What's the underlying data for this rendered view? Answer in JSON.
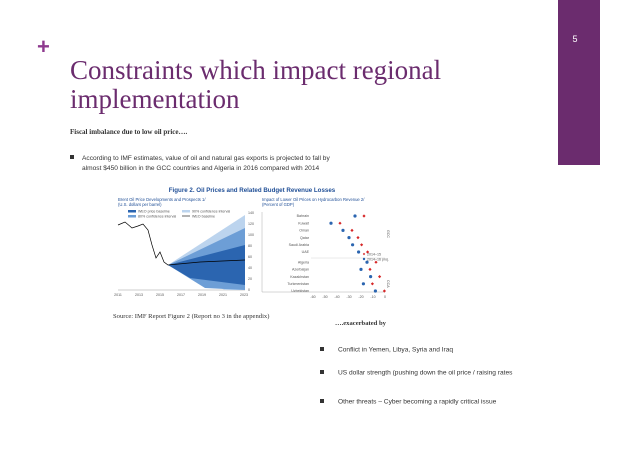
{
  "slide": {
    "number": "5",
    "plus": "+",
    "title_lines": [
      "Constraints which impact regional",
      "implementation"
    ],
    "subheading": "Fiscal imbalance due to low oil price….",
    "bullet1_lines": [
      "According to IMF estimates, value of oil and natural gas exports is projected to fall by",
      "almost $450 billion in the GCC countries and Algeria in 2016 compared with 2014"
    ],
    "figure": {
      "title": "Figure 2. Oil Prices and Related Budget Revenue Losses",
      "left_title": [
        "Brent Oil Price Developments and Prospects 1/",
        "(U.S. dollars per barrel)"
      ],
      "left_legend": [
        "WEO price baseline",
        "80% confidence interval",
        "90% confidence interval",
        "WEO baseline"
      ],
      "left_yticks": [
        "140",
        "120",
        "100",
        "80",
        "60",
        "40",
        "20",
        "0"
      ],
      "left_xticks": [
        "2011",
        "2013",
        "2015",
        "2017",
        "2019",
        "2021",
        "2023"
      ],
      "right_title": [
        "Impact of Lower Oil Prices on Hydrocarbon Revenue 2/",
        "(Percent of GDP)"
      ],
      "countries": [
        "Bahrain",
        "Kuwait",
        "Oman",
        "Qatar",
        "Saudi Arabia",
        "UAE",
        "Algeria",
        "Azerbaijan",
        "Kazakhstan",
        "Turkmenistan",
        "Uzbekistan"
      ],
      "right_legend": [
        "2014–15",
        "2014–16 proj."
      ],
      "right_group_labels": [
        "GCC",
        "CCA"
      ],
      "right_xticks": [
        "-60",
        "-50",
        "-40",
        "-30",
        "-20",
        "-10",
        "0"
      ]
    },
    "source": "Source: IMF Report Figure 2 (Report no 3 in the  appendix)",
    "subheading2": "….exacerbated by",
    "bullets2": [
      "Conflict in Yemen, Libya, Syria and Iraq",
      "US dollar strength (pushing down the oil price / raising rates",
      "Other threats – Cyber becoming a rapidly critical issue"
    ]
  }
}
